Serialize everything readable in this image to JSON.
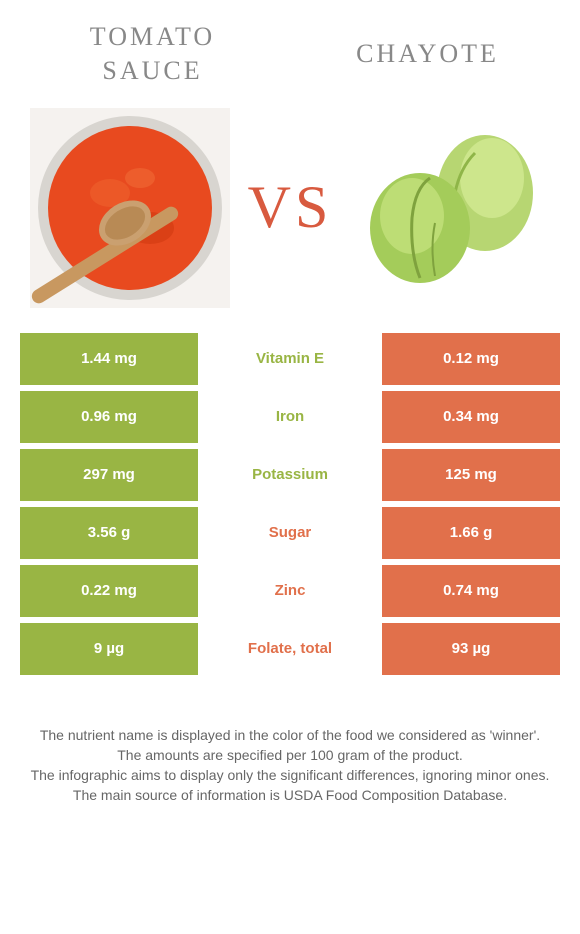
{
  "colors": {
    "left_food": "#99b544",
    "right_food": "#e1704b",
    "vs": "#d85a3f",
    "title": "#8a8a8a",
    "footer_text": "#666666"
  },
  "header": {
    "left_title_line1": "Tomato",
    "left_title_line2": "sauce",
    "right_title": "Chayote",
    "vs_label": "VS"
  },
  "rows": [
    {
      "left": "1.44 mg",
      "label": "Vitamin E",
      "right": "0.12 mg",
      "winner": "left"
    },
    {
      "left": "0.96 mg",
      "label": "Iron",
      "right": "0.34 mg",
      "winner": "left"
    },
    {
      "left": "297 mg",
      "label": "Potassium",
      "right": "125 mg",
      "winner": "left"
    },
    {
      "left": "3.56 g",
      "label": "Sugar",
      "right": "1.66 g",
      "winner": "right"
    },
    {
      "left": "0.22 mg",
      "label": "Zinc",
      "right": "0.74 mg",
      "winner": "right"
    },
    {
      "left": "9 µg",
      "label": "Folate, total",
      "right": "93 µg",
      "winner": "right"
    }
  ],
  "footer": {
    "line1": "The nutrient name is displayed in the color of the food we considered as 'winner'.",
    "line2": "The amounts are specified per 100 gram of the product.",
    "line3": "The infographic aims to display only the significant differences, ignoring minor ones.",
    "line4": "The main source of information is USDA Food Composition Database."
  }
}
